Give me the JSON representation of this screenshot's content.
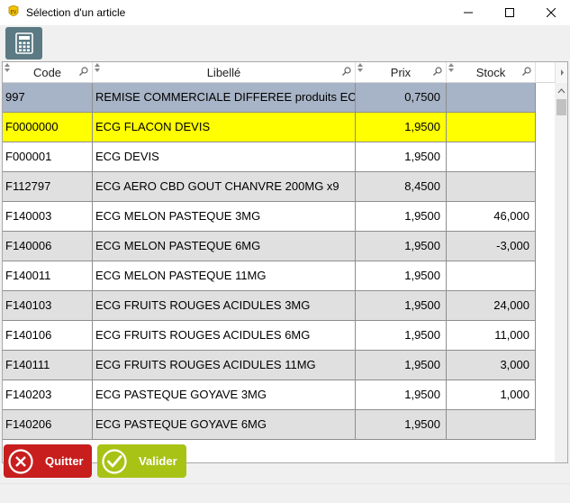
{
  "window": {
    "title": "Sélection d'un article"
  },
  "toolbar": {
    "calculator_icon": "calculator-icon"
  },
  "grid": {
    "columns": [
      "Code",
      "Libellé",
      "Prix",
      "Stock"
    ],
    "rows": [
      {
        "code": "997",
        "libelle": "REMISE COMMERCIALE DIFFEREE produits EC",
        "prix": "0,7500",
        "stock": "",
        "state": "selected"
      },
      {
        "code": "F0000000",
        "libelle": "ECG  FLACON DEVIS",
        "prix": "1,9500",
        "stock": "",
        "state": "highlighted"
      },
      {
        "code": "F000001",
        "libelle": "ECG DEVIS",
        "prix": "1,9500",
        "stock": "",
        "state": "plain"
      },
      {
        "code": "F112797",
        "libelle": "ECG AERO CBD GOUT CHANVRE 200MG x9",
        "prix": "8,4500",
        "stock": "",
        "state": "zebra"
      },
      {
        "code": "F140003",
        "libelle": "ECG MELON PASTEQUE 3MG",
        "prix": "1,9500",
        "stock": "46,000",
        "state": "plain"
      },
      {
        "code": "F140006",
        "libelle": "ECG MELON PASTEQUE 6MG",
        "prix": "1,9500",
        "stock": "-3,000",
        "state": "zebra"
      },
      {
        "code": "F140011",
        "libelle": "ECG MELON PASTEQUE 11MG",
        "prix": "1,9500",
        "stock": "",
        "state": "plain"
      },
      {
        "code": "F140103",
        "libelle": "ECG FRUITS ROUGES ACIDULES 3MG",
        "prix": "1,9500",
        "stock": "24,000",
        "state": "zebra"
      },
      {
        "code": "F140106",
        "libelle": "ECG FRUITS ROUGES ACIDULES 6MG",
        "prix": "1,9500",
        "stock": "11,000",
        "state": "plain"
      },
      {
        "code": "F140111",
        "libelle": "ECG FRUITS ROUGES ACIDULES 11MG",
        "prix": "1,9500",
        "stock": "3,000",
        "state": "zebra"
      },
      {
        "code": "F140203",
        "libelle": "ECG PASTEQUE GOYAVE 3MG",
        "prix": "1,9500",
        "stock": "1,000",
        "state": "plain"
      },
      {
        "code": "F140206",
        "libelle": "ECG PASTEQUE GOYAVE 6MG",
        "prix": "1,9500",
        "stock": "",
        "state": "zebra"
      }
    ]
  },
  "buttons": {
    "quit_label": "Quitter",
    "ok_label": "Valider"
  },
  "colors": {
    "selected_row": "#a7b3c6",
    "highlight_row": "#ffff00",
    "quit_button": "#c81e1e",
    "ok_button": "#a8c316"
  }
}
